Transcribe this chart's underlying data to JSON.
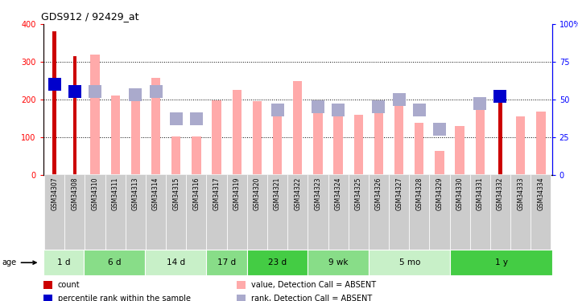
{
  "title": "GDS912 / 92429_at",
  "samples": [
    "GSM34307",
    "GSM34308",
    "GSM34310",
    "GSM34311",
    "GSM34313",
    "GSM34314",
    "GSM34315",
    "GSM34316",
    "GSM34317",
    "GSM34319",
    "GSM34320",
    "GSM34321",
    "GSM34322",
    "GSM34323",
    "GSM34324",
    "GSM34325",
    "GSM34326",
    "GSM34327",
    "GSM34328",
    "GSM34329",
    "GSM34330",
    "GSM34331",
    "GSM34332",
    "GSM34333",
    "GSM34334"
  ],
  "count_values": [
    380,
    315,
    null,
    null,
    null,
    null,
    null,
    null,
    null,
    null,
    null,
    null,
    null,
    null,
    null,
    null,
    null,
    null,
    null,
    null,
    null,
    null,
    205,
    null,
    null
  ],
  "percentile_rank": [
    60,
    55,
    null,
    null,
    null,
    null,
    null,
    null,
    null,
    null,
    null,
    null,
    null,
    null,
    null,
    null,
    null,
    null,
    null,
    null,
    null,
    null,
    52,
    null,
    null
  ],
  "absent_value": [
    null,
    null,
    320,
    210,
    210,
    258,
    102,
    102,
    198,
    225,
    195,
    172,
    248,
    185,
    160,
    158,
    165,
    200,
    137,
    62,
    130,
    183,
    null,
    155,
    168
  ],
  "absent_rank": [
    null,
    null,
    55,
    null,
    53,
    55,
    37,
    37,
    null,
    null,
    null,
    43,
    null,
    45,
    43,
    null,
    45,
    50,
    43,
    30,
    null,
    47,
    null,
    null,
    null
  ],
  "age_groups": [
    {
      "label": "1 d",
      "start": 0,
      "end": 2
    },
    {
      "label": "6 d",
      "start": 2,
      "end": 5
    },
    {
      "label": "14 d",
      "start": 5,
      "end": 8
    },
    {
      "label": "17 d",
      "start": 8,
      "end": 10
    },
    {
      "label": "23 d",
      "start": 10,
      "end": 13
    },
    {
      "label": "9 wk",
      "start": 13,
      "end": 16
    },
    {
      "label": "5 mo",
      "start": 16,
      "end": 20
    },
    {
      "label": "1 y",
      "start": 20,
      "end": 25
    }
  ],
  "age_colors": [
    "#c8f0c8",
    "#88dd88",
    "#c8f0c8",
    "#88dd88",
    "#44cc44",
    "#88dd88",
    "#c8f0c8",
    "#44cc44"
  ],
  "ylim_left": [
    0,
    400
  ],
  "ylim_right": [
    0,
    100
  ],
  "yticks_left": [
    0,
    100,
    200,
    300,
    400
  ],
  "yticks_right": [
    0,
    25,
    50,
    75,
    100
  ],
  "grid_values": [
    100,
    200,
    300
  ],
  "count_color": "#cc0000",
  "rank_color": "#0000cc",
  "absent_val_color": "#ffaaaa",
  "absent_rank_color": "#aaaacc",
  "bg_color": "#ffffff",
  "xticklabel_bg": "#cccccc",
  "legend_items": [
    {
      "label": "count",
      "color": "#cc0000"
    },
    {
      "label": "percentile rank within the sample",
      "color": "#0000cc"
    },
    {
      "label": "value, Detection Call = ABSENT",
      "color": "#ffaaaa"
    },
    {
      "label": "rank, Detection Call = ABSENT",
      "color": "#aaaacc"
    }
  ]
}
